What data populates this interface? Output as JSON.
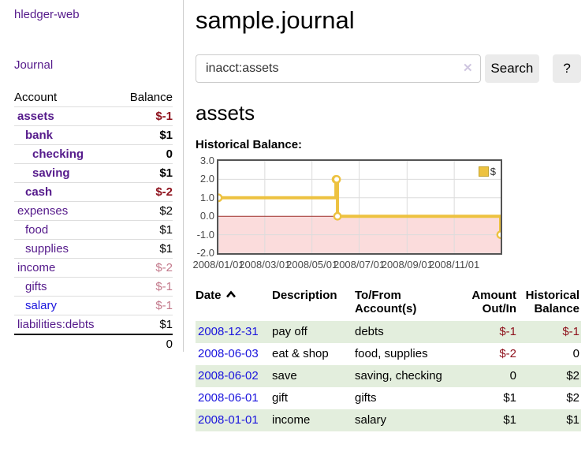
{
  "app": {
    "brand": "hledger-web",
    "nav": {
      "journal": "Journal"
    }
  },
  "sidebar": {
    "header": {
      "account": "Account",
      "balance": "Balance"
    },
    "rows": [
      {
        "account": "assets",
        "balance": "$-1",
        "level": 0,
        "bold": true,
        "tone": "negative"
      },
      {
        "account": "bank",
        "balance": "$1",
        "level": 1,
        "bold": true,
        "tone": "normal"
      },
      {
        "account": "checking",
        "balance": "0",
        "level": 2,
        "bold": true,
        "tone": "normal"
      },
      {
        "account": "saving",
        "balance": "$1",
        "level": 2,
        "bold": true,
        "tone": "normal"
      },
      {
        "account": "cash",
        "balance": "$-2",
        "level": 1,
        "bold": true,
        "tone": "negative"
      },
      {
        "account": "expenses",
        "balance": "$2",
        "level": 0,
        "bold": false,
        "tone": "normal"
      },
      {
        "account": "food",
        "balance": "$1",
        "level": 1,
        "bold": false,
        "tone": "normal"
      },
      {
        "account": "supplies",
        "balance": "$1",
        "level": 1,
        "bold": false,
        "tone": "normal"
      },
      {
        "account": "income",
        "balance": "$-2",
        "level": 0,
        "bold": false,
        "tone": "faded"
      },
      {
        "account": "gifts",
        "balance": "$-1",
        "level": 1,
        "bold": false,
        "tone": "faded"
      },
      {
        "account": "salary",
        "balance": "$-1",
        "level": 1,
        "bold": false,
        "tone": "faded"
      },
      {
        "account": "liabilities:debts",
        "balance": "$1",
        "level": 0,
        "bold": false,
        "tone": "normal"
      }
    ],
    "total": "0"
  },
  "main": {
    "title": "sample.journal",
    "search": {
      "value": "inacct:assets",
      "placeholder": "",
      "clear_icon": "✕",
      "search_label": "Search",
      "help_label": "?"
    },
    "heading": "assets",
    "chart_label": "Historical Balance:"
  },
  "chart_data": {
    "type": "line",
    "step": true,
    "title": "Historical Balance",
    "series": [
      {
        "name": "$",
        "color": "#edc240",
        "points": [
          [
            "2008-01-01",
            1
          ],
          [
            "2008-06-01",
            2
          ],
          [
            "2008-06-02",
            2
          ],
          [
            "2008-06-03",
            0
          ],
          [
            "2008-12-31",
            -1
          ]
        ]
      }
    ],
    "xlim": [
      "2008-01-01",
      "2008-12-31"
    ],
    "ylim": [
      -2,
      3
    ],
    "x_ticks": [
      "2008/01/01",
      "2008/03/01",
      "2008/05/01",
      "2008/07/01",
      "2008/09/01",
      "2008/11/01"
    ],
    "y_ticks": [
      "3.0",
      "2.0",
      "1.0",
      "0.0",
      "-1.0",
      "-2.0"
    ],
    "grid": true,
    "legend_position": "top-right",
    "negative_region": true
  },
  "register": {
    "headers": {
      "date": "Date",
      "description": "Description",
      "accounts": "To/From Account(s)",
      "amount": "Amount Out/In",
      "balance": "Historical Balance"
    },
    "sort": {
      "column": "date",
      "direction": "ascending"
    },
    "rows": [
      {
        "date": "2008-12-31",
        "description": "pay off",
        "accounts": "debts",
        "amount": "$-1",
        "balance": "$-1"
      },
      {
        "date": "2008-06-03",
        "description": "eat & shop",
        "accounts": "food, supplies",
        "amount": "$-2",
        "balance": "0"
      },
      {
        "date": "2008-06-02",
        "description": "save",
        "accounts": "saving, checking",
        "amount": "0",
        "balance": "$2"
      },
      {
        "date": "2008-06-01",
        "description": "gift",
        "accounts": "gifts",
        "amount": "$1",
        "balance": "$2"
      },
      {
        "date": "2008-01-01",
        "description": "income",
        "accounts": "salary",
        "amount": "$1",
        "balance": "$1"
      }
    ]
  },
  "colors": {
    "link_purple": "#551a8b",
    "link_blue": "#1a14dd",
    "negative_red": "#8e111c",
    "faded_negative": "#c3798b",
    "row_green": "#e3eedd",
    "chart_line": "#edc240",
    "chart_negative_fill": "#fbdcdc",
    "chart_zero_line": "#9c2f2a",
    "chart_grid": "#dcdcdc",
    "chart_border": "#545454"
  }
}
